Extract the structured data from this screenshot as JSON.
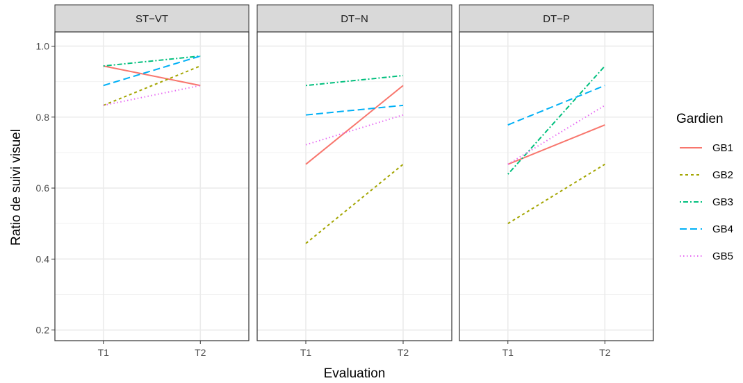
{
  "chart_data": {
    "type": "line",
    "xlabel": "Evaluation",
    "ylabel": "Ratio de suivi visuel",
    "ylim": [
      0.17,
      1.04
    ],
    "yticks": [
      0.2,
      0.4,
      0.6,
      0.8,
      1.0
    ],
    "ytick_labels": [
      "0.2",
      "0.4",
      "0.6",
      "0.8",
      "1.0"
    ],
    "categories": [
      "T1",
      "T2"
    ],
    "grid": true,
    "legend": {
      "title": "Gardien",
      "placement": "right",
      "entries": [
        {
          "name": "GB1",
          "color": "#F8766D",
          "dash": "solid"
        },
        {
          "name": "GB2",
          "color": "#A3A500",
          "dash": "dashed"
        },
        {
          "name": "GB3",
          "color": "#00BF7D",
          "dash": "dotdash"
        },
        {
          "name": "GB4",
          "color": "#00B0F6",
          "dash": "longdash"
        },
        {
          "name": "GB5",
          "color": "#E76BF3",
          "dash": "dotted"
        }
      ]
    },
    "panels": [
      {
        "title": "ST−VT",
        "series": [
          {
            "name": "GB1",
            "values": [
              0.944,
              0.889
            ]
          },
          {
            "name": "GB2",
            "values": [
              0.833,
              0.944
            ]
          },
          {
            "name": "GB3",
            "values": [
              0.944,
              0.972
            ]
          },
          {
            "name": "GB4",
            "values": [
              0.889,
              0.972
            ]
          },
          {
            "name": "GB5",
            "values": [
              0.833,
              0.889
            ]
          }
        ]
      },
      {
        "title": "DT−N",
        "series": [
          {
            "name": "GB1",
            "values": [
              0.667,
              0.889
            ]
          },
          {
            "name": "GB2",
            "values": [
              0.444,
              0.667
            ]
          },
          {
            "name": "GB3",
            "values": [
              0.889,
              0.917
            ]
          },
          {
            "name": "GB4",
            "values": [
              0.806,
              0.833
            ]
          },
          {
            "name": "GB5",
            "values": [
              0.722,
              0.806
            ]
          }
        ]
      },
      {
        "title": "DT−P",
        "series": [
          {
            "name": "GB1",
            "values": [
              0.667,
              0.778
            ]
          },
          {
            "name": "GB2",
            "values": [
              0.5,
              0.667
            ]
          },
          {
            "name": "GB3",
            "values": [
              0.639,
              0.944
            ]
          },
          {
            "name": "GB4",
            "values": [
              0.778,
              0.889
            ]
          },
          {
            "name": "GB5",
            "values": [
              0.667,
              0.833
            ]
          }
        ]
      }
    ]
  }
}
